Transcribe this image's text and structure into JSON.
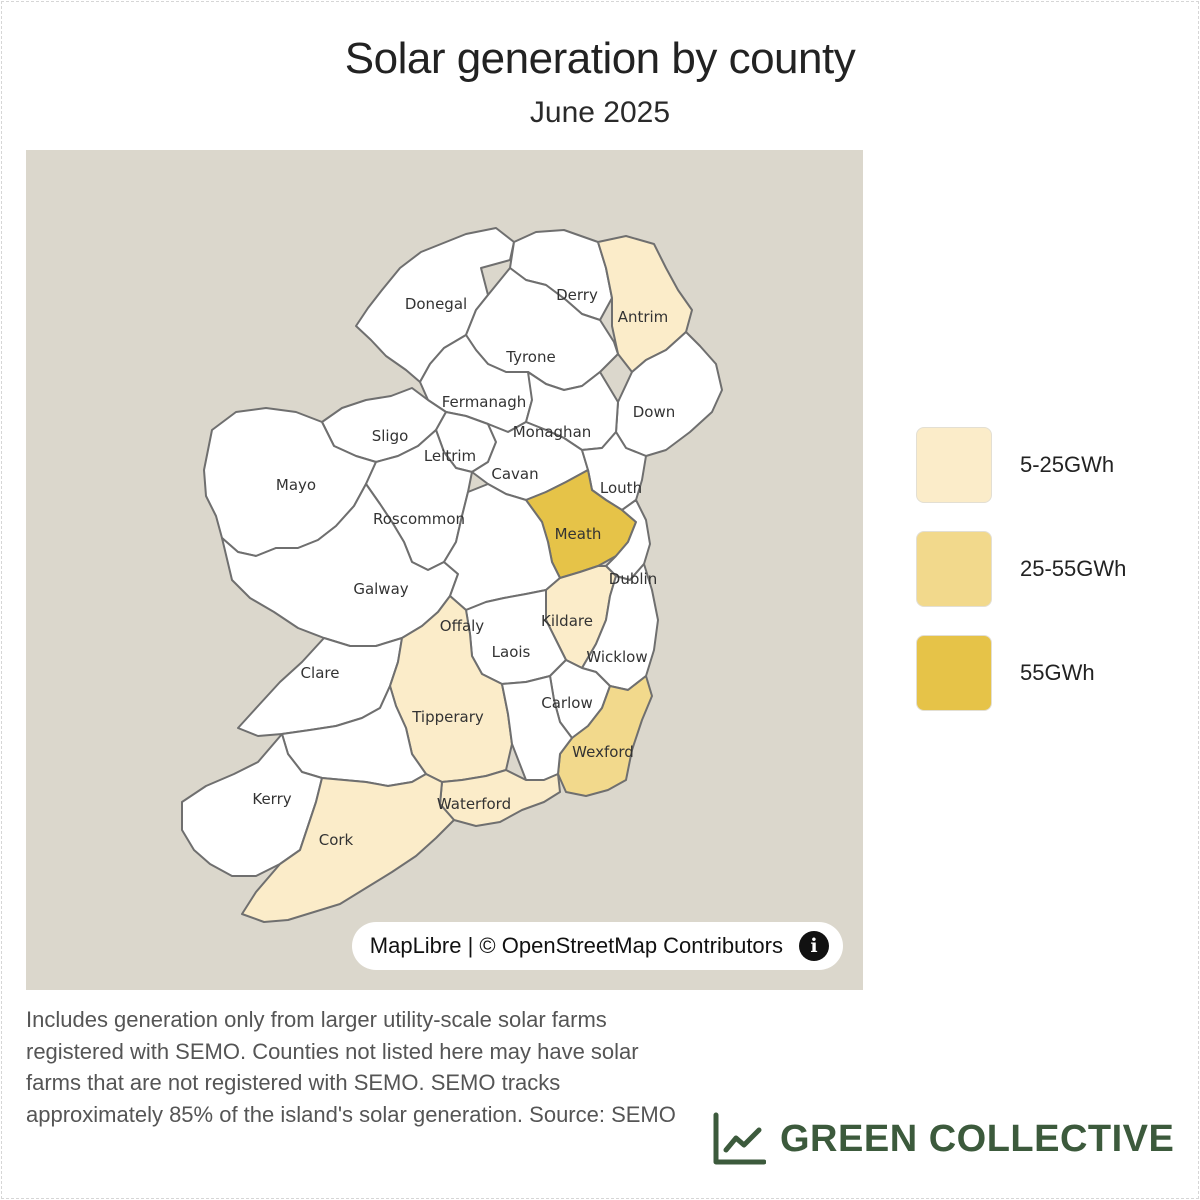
{
  "title": "Solar generation by county",
  "subtitle": "June 2025",
  "map": {
    "attribution": "MapLibre | © OpenStreetMap Contributors",
    "info_icon": "info-icon",
    "colors": {
      "background": "#dbd7cc",
      "no_data": "#ffffff",
      "border": "#6f6f6f",
      "low": "#fbecc9",
      "mid": "#f2d98c",
      "high": "#e6c348"
    },
    "counties": {
      "donegal": {
        "name": "Donegal"
      },
      "derry": {
        "name": "Derry"
      },
      "antrim": {
        "name": "Antrim",
        "category": "5-25GWh"
      },
      "tyrone": {
        "name": "Tyrone"
      },
      "fermanagh": {
        "name": "Fermanagh"
      },
      "monaghan": {
        "name": "Monaghan"
      },
      "down": {
        "name": "Down"
      },
      "sligo": {
        "name": "Sligo"
      },
      "leitrim": {
        "name": "Leitrim"
      },
      "cavan": {
        "name": "Cavan"
      },
      "mayo": {
        "name": "Mayo"
      },
      "louth": {
        "name": "Louth"
      },
      "roscommon": {
        "name": "Roscommon"
      },
      "meath": {
        "name": "Meath",
        "category": "55GWh"
      },
      "dublin": {
        "name": "Dublin"
      },
      "galway": {
        "name": "Galway"
      },
      "offaly": {
        "name": "Offaly"
      },
      "kildare": {
        "name": "Kildare",
        "category": "5-25GWh"
      },
      "laois": {
        "name": "Laois"
      },
      "wicklow": {
        "name": "Wicklow"
      },
      "clare": {
        "name": "Clare"
      },
      "carlow": {
        "name": "Carlow"
      },
      "tipperary": {
        "name": "Tipperary",
        "category": "5-25GWh"
      },
      "wexford": {
        "name": "Wexford",
        "category": "25-55GWh"
      },
      "kerry": {
        "name": "Kerry"
      },
      "waterford": {
        "name": "Waterford",
        "category": "5-25GWh"
      },
      "cork": {
        "name": "Cork",
        "category": "5-25GWh"
      }
    }
  },
  "legend": [
    {
      "label": "5-25GWh",
      "color": "#fbecc9"
    },
    {
      "label": "25-55GWh",
      "color": "#f2d98c"
    },
    {
      "label": "55GWh",
      "color": "#e6c348"
    }
  ],
  "footnote": "Includes generation only from larger utility-scale solar farms registered with SEMO. Counties not listed here may have solar farms that are not registered with SEMO. SEMO tracks approximately 85% of the island's solar generation. Source: SEMO",
  "brand": {
    "name": "GREEN COLLECTIVE",
    "icon": "line-chart-icon",
    "color": "#3c5a3c"
  }
}
